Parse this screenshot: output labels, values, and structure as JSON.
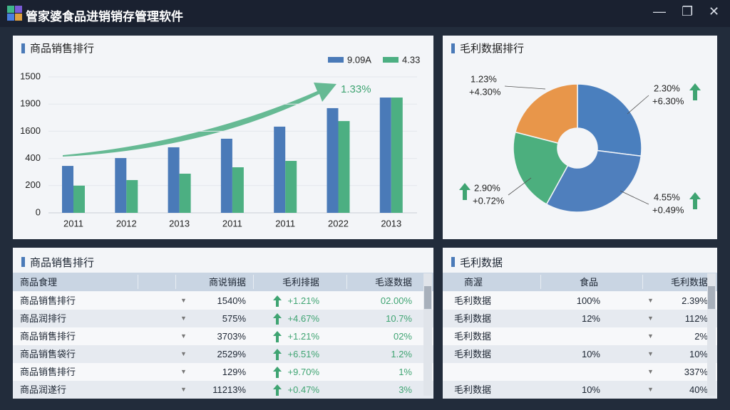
{
  "window": {
    "title": "管家婆食品进销销存管理软件"
  },
  "chart_data": [
    {
      "type": "bar",
      "title": "商品销售排行",
      "categories": [
        "2011",
        "2012",
        "2013",
        "2011",
        "2011",
        "2022",
        "2013"
      ],
      "series": [
        {
          "name": "9.09A",
          "color": "#4a7ab8",
          "values": [
            345,
            403,
            482,
            545,
            634,
            770,
            848
          ]
        },
        {
          "name": "4.33",
          "color": "#4caf82",
          "values": [
            200,
            241,
            288,
            335,
            382,
            675,
            848
          ]
        }
      ],
      "ylim": [
        0,
        1000
      ],
      "yticks": [
        0,
        200,
        400,
        {
          "value": 600,
          "label": "1600"
        },
        {
          "value": 800,
          "label": "1900"
        },
        {
          "value": 1000,
          "label": "1500"
        }
      ],
      "annotation": "1.33%",
      "legend": "top-right"
    },
    {
      "type": "pie",
      "title": "毛利数据排行",
      "values": [
        27,
        31,
        21,
        21
      ],
      "colors": [
        "#4a7fbe",
        "#4f7fbd",
        "#4caf7e",
        "#e8964a"
      ],
      "annotations": [
        {
          "label": "2.30%",
          "change": "+6.30%"
        },
        {
          "label": "4.55%",
          "change": "+0.49%"
        },
        {
          "label": "2.90%",
          "change": "+0.72%"
        },
        {
          "label": "1.23%",
          "change": "+4.30%"
        }
      ]
    }
  ],
  "tables": [
    {
      "title": "商品销售排行",
      "columns": [
        "商品食理",
        "商说销据",
        "毛利排据",
        "毛逐数据"
      ],
      "rows": [
        [
          "商品销售排行",
          "1540%",
          "+1.21%",
          "02.00%"
        ],
        [
          "商品润排行",
          "575%",
          "+4.67%",
          "10.7%"
        ],
        [
          "商品销售排行",
          "3703%",
          "+1.21%",
          "02%"
        ],
        [
          "商品销售袋行",
          "2529%",
          "+6.51%",
          "1.2%"
        ],
        [
          "商品销售排行",
          "129%",
          "+9.70%",
          "1%"
        ],
        [
          "商品润遂行",
          "11213%",
          "+0.47%",
          "3%"
        ]
      ]
    },
    {
      "title": "毛利数据",
      "columns": [
        "商渥",
        "食品",
        "毛利数据"
      ],
      "rows": [
        [
          "毛利数据",
          "100%",
          "2.39%"
        ],
        [
          "毛利数据",
          "12%",
          "112%"
        ],
        [
          "毛利数据",
          null,
          "2%"
        ],
        [
          "毛利数据",
          "10%",
          "10%"
        ],
        [
          null,
          null,
          "337%"
        ],
        [
          "毛利数据",
          "10%",
          "40%"
        ]
      ]
    }
  ]
}
